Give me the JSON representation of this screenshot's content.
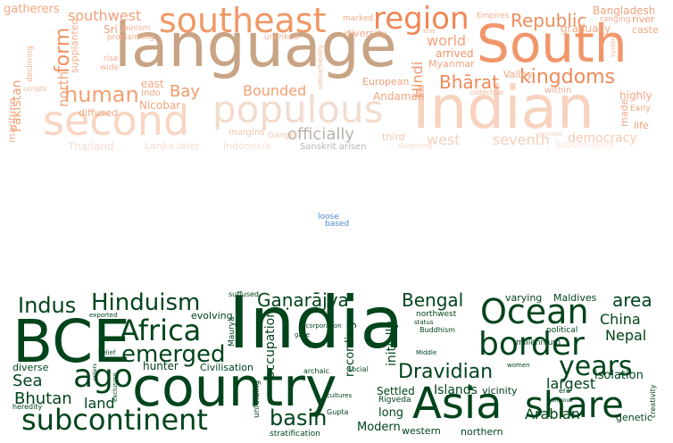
{
  "clouds": {
    "top": {
      "words": [
        {
          "text": "language",
          "color": "#c8a485"
        },
        {
          "text": "South",
          "color": "#f1966a"
        },
        {
          "text": "second",
          "color": "#f8d6c3"
        },
        {
          "text": "populous",
          "color": "#f3dccd"
        },
        {
          "text": "Indian",
          "color": "#f7d3bf"
        },
        {
          "text": "southeast",
          "color": "#f09866"
        },
        {
          "text": "region",
          "color": "#ee8756"
        },
        {
          "text": "southwest",
          "color": "#f1a27b"
        },
        {
          "text": "form",
          "color": "#f0915f"
        },
        {
          "text": "human",
          "color": "#f2a070"
        },
        {
          "text": "Republic",
          "color": "#ef8e5c"
        },
        {
          "text": "kingdoms",
          "color": "#f08a58"
        },
        {
          "text": "Hindi",
          "color": "#f09a6c"
        },
        {
          "text": "world",
          "color": "#f3a47c"
        },
        {
          "text": "Bhārat",
          "color": "#ee8a58"
        },
        {
          "text": "Bay",
          "color": "#f09968"
        },
        {
          "text": "Bounded",
          "color": "#f1a071"
        },
        {
          "text": "officially",
          "color": "#b9b2aa"
        },
        {
          "text": "democracy",
          "color": "#f7c9b0"
        },
        {
          "text": "seventh",
          "color": "#f6ceb8"
        },
        {
          "text": "west",
          "color": "#f7d0bb"
        },
        {
          "text": "Bangladesh",
          "color": "#f0a27c"
        },
        {
          "text": "Pakistan",
          "color": "#f2a074"
        },
        {
          "text": "north",
          "color": "#f2a47d"
        },
        {
          "text": "Myanmar",
          "color": "#f1a27a"
        },
        {
          "text": "arrived",
          "color": "#ef9465"
        },
        {
          "text": "European",
          "color": "#f0a07a"
        },
        {
          "text": "Andaman",
          "color": "#f2a580"
        },
        {
          "text": "Nicobar",
          "color": "#f2a37c"
        },
        {
          "text": "east",
          "color": "#f2a57e"
        },
        {
          "text": "diffused",
          "color": "#f3a983"
        },
        {
          "text": "Indo",
          "color": "#f3a883"
        },
        {
          "text": "gatherers",
          "color": "#f3a57f"
        },
        {
          "text": "Sri",
          "color": "#f1a078"
        },
        {
          "text": "Jainism",
          "color": "#f3b08f"
        },
        {
          "text": "proclaiming",
          "color": "#f3b190"
        },
        {
          "text": "supplanted",
          "color": "#f4ad8b"
        },
        {
          "text": "declining",
          "color": "#f4b090"
        },
        {
          "text": "diversity",
          "color": "#f2a57e"
        },
        {
          "text": "unlinked",
          "color": "#f4b294"
        },
        {
          "text": "marked",
          "color": "#f2ab88"
        },
        {
          "text": "Empires",
          "color": "#f3ae8d"
        },
        {
          "text": "ranging",
          "color": "#f4b192"
        },
        {
          "text": "river",
          "color": "#f0a07a"
        },
        {
          "text": "caste",
          "color": "#f1a67f"
        },
        {
          "text": "gradually",
          "color": "#f3ab89"
        },
        {
          "text": "Valley",
          "color": "#f2a882"
        },
        {
          "text": "highly",
          "color": "#f2a781"
        },
        {
          "text": "within",
          "color": "#f3ae8d"
        },
        {
          "text": "Early",
          "color": "#f1a47d"
        },
        {
          "text": "life",
          "color": "#f0a27a"
        },
        {
          "text": "made",
          "color": "#f2a781"
        },
        {
          "text": "maritime",
          "color": "#f3b091"
        },
        {
          "text": "scripts",
          "color": "#f5b9a0"
        },
        {
          "text": "rise",
          "color": "#f3ad8b"
        },
        {
          "text": "wide",
          "color": "#f4b293"
        },
        {
          "text": "untouchability",
          "color": "#f3b091"
        },
        {
          "text": "knit",
          "color": "#f4b596"
        },
        {
          "text": "system",
          "color": "#f4b698"
        },
        {
          "text": "collective",
          "color": "#f4b596"
        },
        {
          "text": "margins",
          "color": "#f5c3ab"
        },
        {
          "text": "Ganges",
          "color": "#f6c6af"
        },
        {
          "text": "third",
          "color": "#f6c8b2"
        },
        {
          "text": "organised",
          "color": "#f7cbb8"
        },
        {
          "text": "Thailand",
          "color": "#f8dccf"
        },
        {
          "text": "Lanka later",
          "color": "#f8ddd0"
        },
        {
          "text": "Indonesia",
          "color": "#f9dfd2"
        },
        {
          "text": "Sanskrit arisen",
          "color": "#bdb5ad"
        },
        {
          "text": "dawning",
          "color": "#f8dacc"
        },
        {
          "text": "Subcontinent",
          "color": "#f9e3d7"
        }
      ]
    },
    "middle": {
      "words": [
        {
          "text": "loose",
          "color": "#4f8bcf"
        },
        {
          "text": "based",
          "color": "#4f8bcf"
        }
      ]
    },
    "bottom": {
      "words": [
        {
          "text": "India",
          "color": "#00441b"
        },
        {
          "text": "BCE",
          "color": "#00441b"
        },
        {
          "text": "country",
          "color": "#00441b"
        },
        {
          "text": "Ocean",
          "color": "#00441b"
        },
        {
          "text": "Asia",
          "color": "#00441b"
        },
        {
          "text": "share",
          "color": "#00441b"
        },
        {
          "text": "border",
          "color": "#00441b"
        },
        {
          "text": "subcontinent",
          "color": "#00441b"
        },
        {
          "text": "Africa",
          "color": "#00441b"
        },
        {
          "text": "Hinduism",
          "color": "#00441b"
        },
        {
          "text": "Indus",
          "color": "#00441b"
        },
        {
          "text": "ago",
          "color": "#00441b"
        },
        {
          "text": "emerged",
          "color": "#00441b"
        },
        {
          "text": "years",
          "color": "#00441b"
        },
        {
          "text": "Dravidian",
          "color": "#00441b"
        },
        {
          "text": "basin",
          "color": "#00441b"
        },
        {
          "text": "Gaṇarājya",
          "color": "#00441b"
        },
        {
          "text": "Bengal",
          "color": "#00441b"
        },
        {
          "text": "area",
          "color": "#00441b"
        },
        {
          "text": "China",
          "color": "#00441b"
        },
        {
          "text": "Nepal",
          "color": "#00441b"
        },
        {
          "text": "largest",
          "color": "#00441b"
        },
        {
          "text": "Arabian",
          "color": "#00441b"
        },
        {
          "text": "isolation",
          "color": "#00441b"
        },
        {
          "text": "Sea",
          "color": "#00441b"
        },
        {
          "text": "Bhutan",
          "color": "#00441b"
        },
        {
          "text": "land",
          "color": "#00441b"
        },
        {
          "text": "diverse",
          "color": "#00441b"
        },
        {
          "text": "hunter",
          "color": "#00441b"
        },
        {
          "text": "Civilisation",
          "color": "#00441b"
        },
        {
          "text": "evolving",
          "color": "#00441b"
        },
        {
          "text": "occupation",
          "color": "#00441b"
        },
        {
          "text": "recording",
          "color": "#00441b"
        },
        {
          "text": "initially",
          "color": "#00441b"
        },
        {
          "text": "Islands",
          "color": "#00441b"
        },
        {
          "text": "Settled",
          "color": "#00441b"
        },
        {
          "text": "long",
          "color": "#00441b"
        },
        {
          "text": "Modern",
          "color": "#00441b"
        },
        {
          "text": "western",
          "color": "#00441b"
        },
        {
          "text": "northern",
          "color": "#00441b"
        },
        {
          "text": "varying",
          "color": "#00441b"
        },
        {
          "text": "Maldives",
          "color": "#00441b"
        },
        {
          "text": "political",
          "color": "#00441b"
        },
        {
          "text": "millennium",
          "color": "#00441b"
        },
        {
          "text": "vicinity",
          "color": "#00441b"
        },
        {
          "text": "genetic",
          "color": "#00441b"
        },
        {
          "text": "creativity",
          "color": "#00441b"
        },
        {
          "text": "suffused",
          "color": "#00441b"
        },
        {
          "text": "northwest",
          "color": "#00441b"
        },
        {
          "text": "Buddhism",
          "color": "#00441b"
        },
        {
          "text": "status",
          "color": "#00441b"
        },
        {
          "text": "incorporation",
          "color": "#00441b"
        },
        {
          "text": "gave",
          "color": "#00441b"
        },
        {
          "text": "Maurya",
          "color": "#00441b"
        },
        {
          "text": "exported",
          "color": "#00441b"
        },
        {
          "text": "belief",
          "color": "#00441b"
        },
        {
          "text": "orders",
          "color": "#00441b"
        },
        {
          "text": "exclusion",
          "color": "#00441b"
        },
        {
          "text": "heredity",
          "color": "#00441b"
        },
        {
          "text": "unfolding",
          "color": "#00441b"
        },
        {
          "text": "stratification",
          "color": "#00441b"
        },
        {
          "text": "archaic",
          "color": "#00441b"
        },
        {
          "text": "social",
          "color": "#00441b"
        },
        {
          "text": "cultures",
          "color": "#00441b"
        },
        {
          "text": "Gupta",
          "color": "#00441b"
        },
        {
          "text": "Rigveda",
          "color": "#00441b"
        },
        {
          "text": "women",
          "color": "#00441b"
        },
        {
          "text": "Middle",
          "color": "#00441b"
        },
        {
          "text": "era",
          "color": "#00441b"
        },
        {
          "text": "religious",
          "color": "#00441b"
        }
      ]
    }
  }
}
